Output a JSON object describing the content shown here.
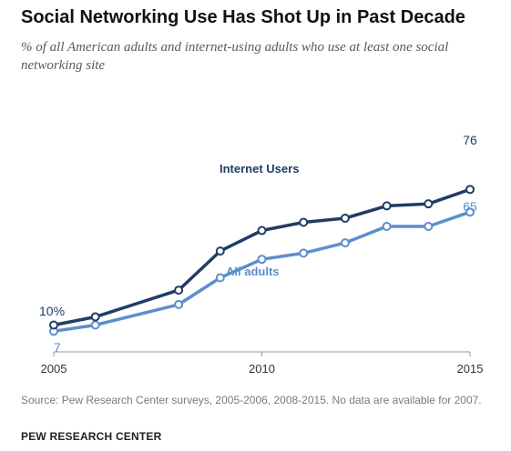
{
  "header": {
    "title": "Social Networking Use Has Shot Up in Past Decade",
    "subtitle": "% of all American adults and internet-using adults who use at least one social networking site"
  },
  "footer": {
    "source": "Source: Pew Research Center surveys, 2005-2006, 2008-2015. No data are available for 2007.",
    "brand": "PEW RESEARCH CENTER"
  },
  "chart_data": {
    "type": "line",
    "xlim": [
      2005,
      2015
    ],
    "ylim": [
      0,
      100
    ],
    "x_ticks": [
      2005,
      2010,
      2015
    ],
    "grid": false,
    "legend": "inline labels",
    "series": [
      {
        "name": "Internet Users",
        "color": "#1f3d66",
        "x": [
          2005,
          2006,
          2008,
          2009,
          2010,
          2011,
          2012,
          2013,
          2014,
          2015
        ],
        "values": [
          10,
          14,
          27,
          46,
          56,
          60,
          62,
          68,
          69,
          76
        ],
        "label_start": "10%",
        "label_end": "76"
      },
      {
        "name": "All adults",
        "color": "#5b8fcc",
        "x": [
          2005,
          2006,
          2008,
          2009,
          2010,
          2011,
          2012,
          2013,
          2014,
          2015
        ],
        "values": [
          7,
          10,
          20,
          33,
          42,
          45,
          50,
          58,
          58,
          65
        ],
        "label_start": "7",
        "label_end": "65"
      }
    ]
  }
}
